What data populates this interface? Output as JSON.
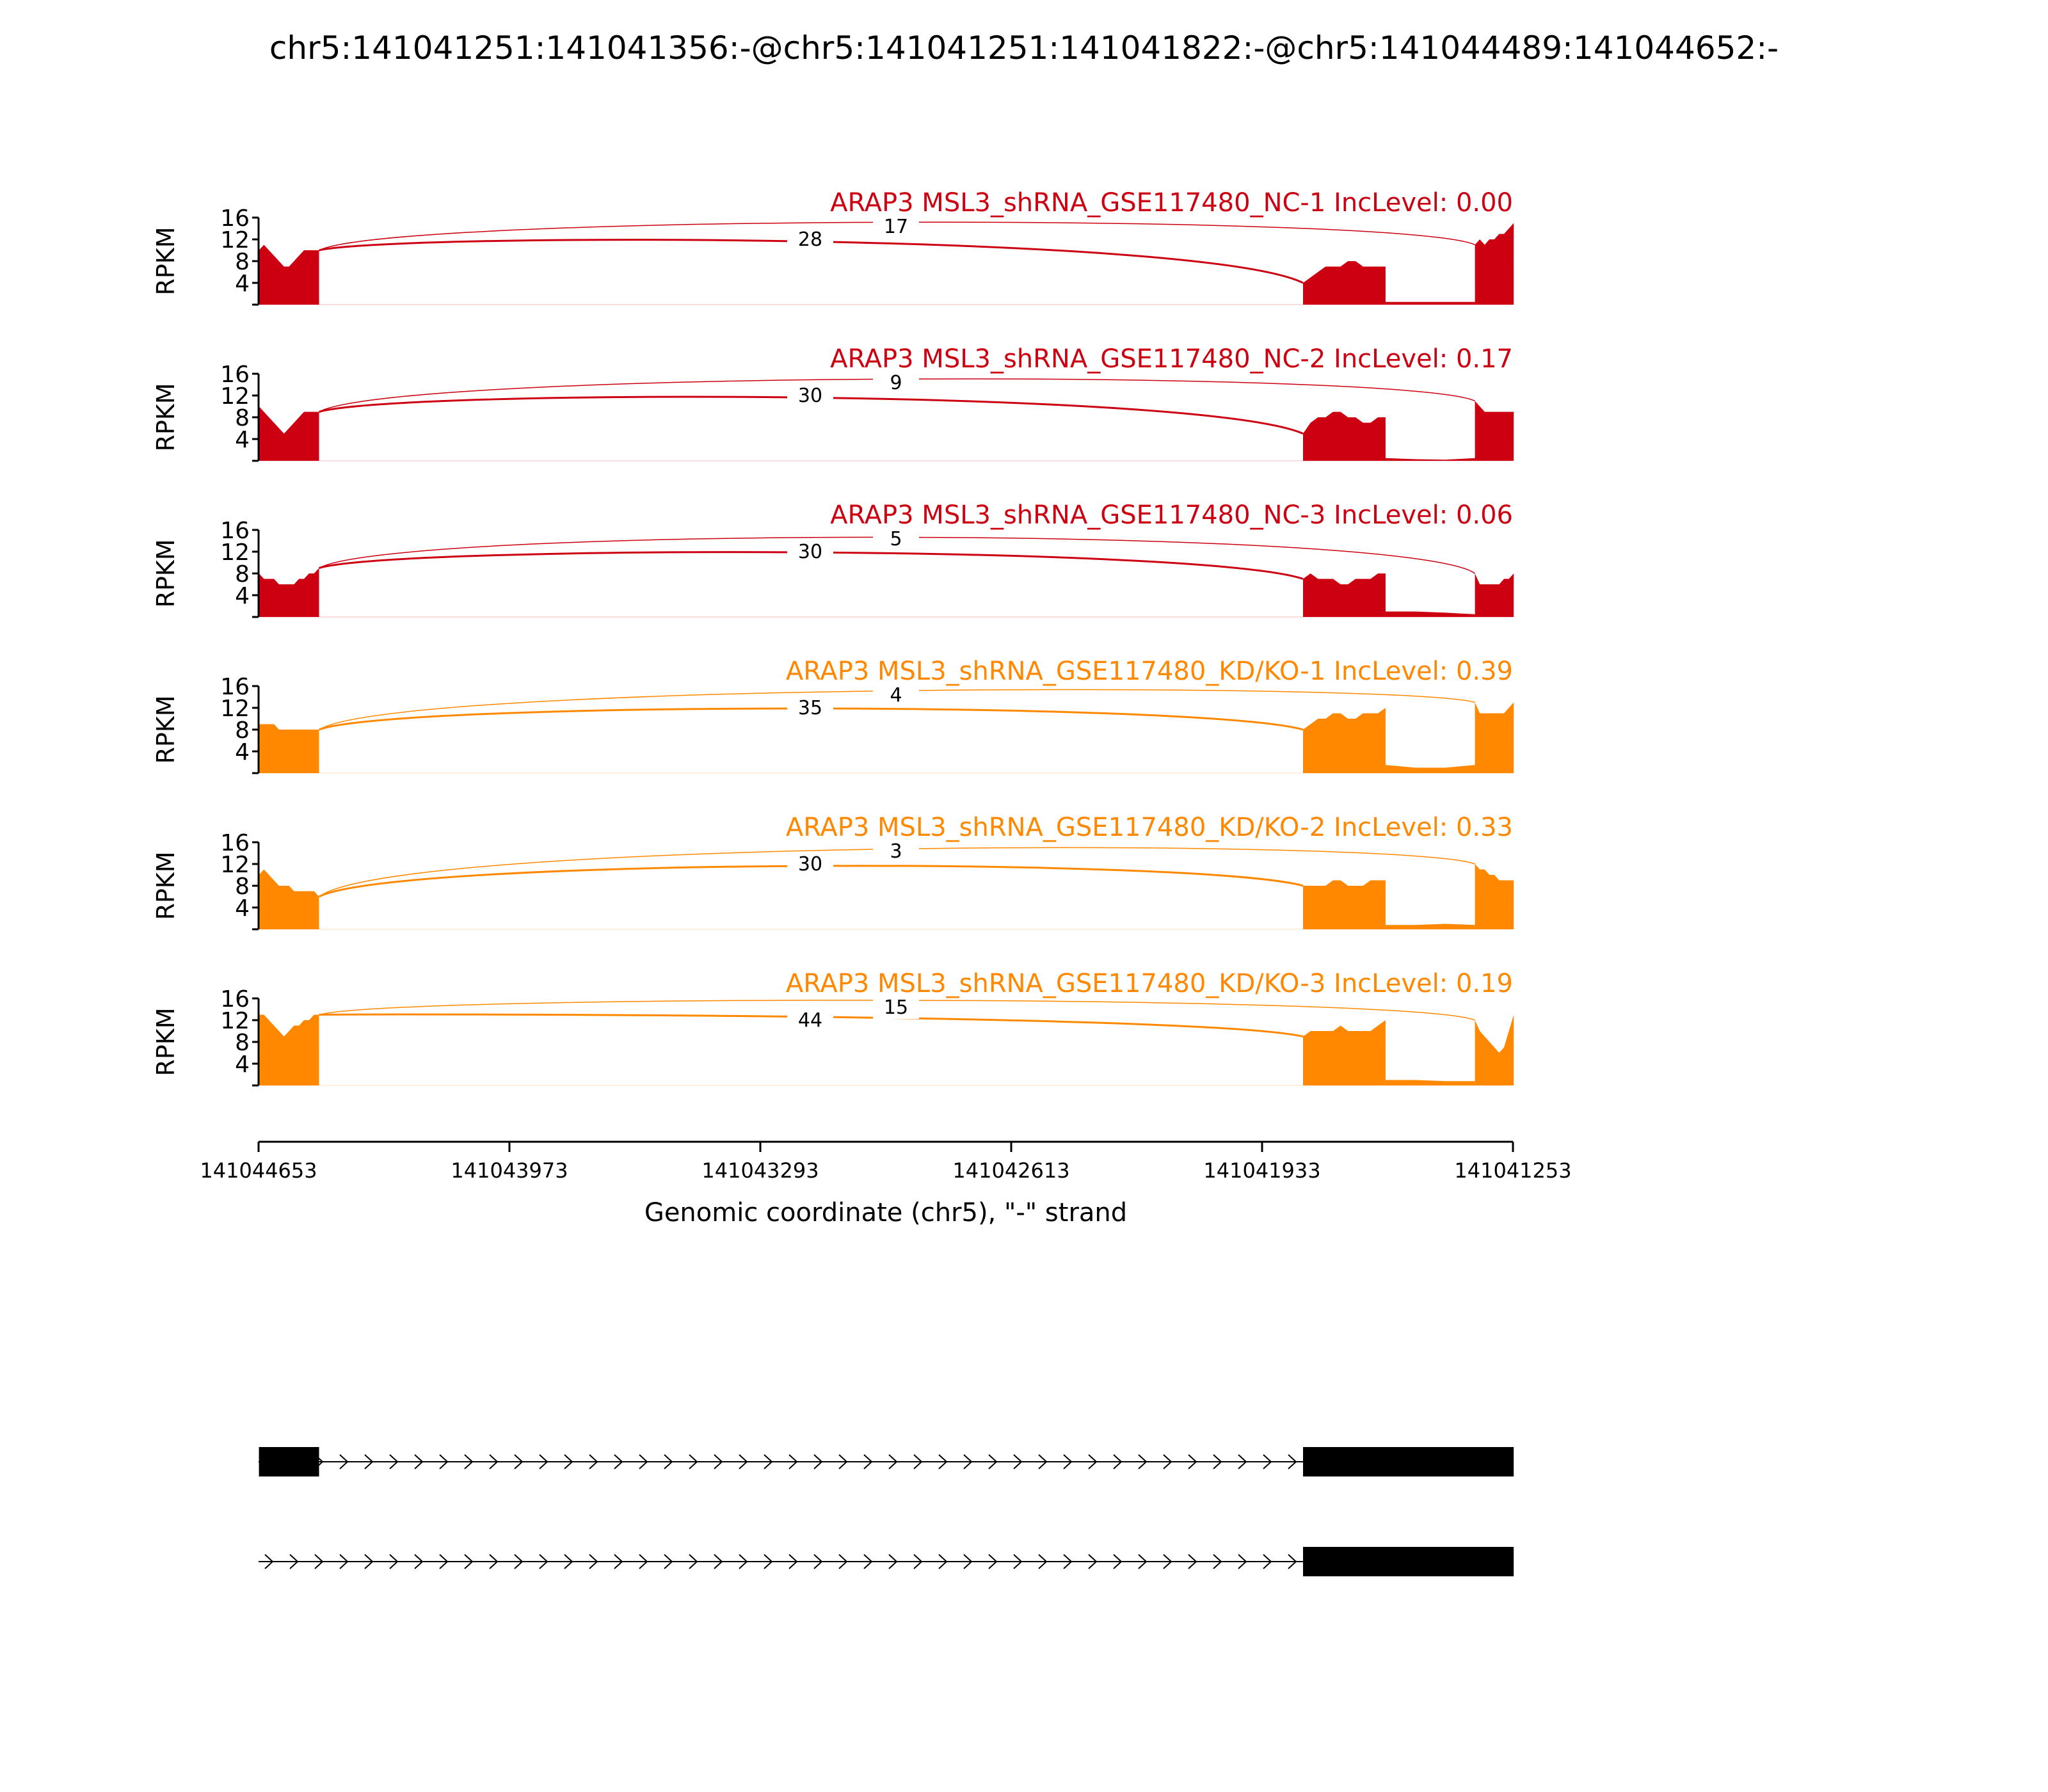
{
  "chart_data": {
    "type": "area",
    "title": "chr5:141041251:141041356:-@chr5:141041251:141041822:-@chr5:141044489:141044652:-",
    "xlabel": "Genomic coordinate (chr5), \"-\" strand",
    "ylabel": "RPKM",
    "x_range": [
      141044653,
      141041253
    ],
    "x_ticks": [
      "141044653",
      "141043973",
      "141043293",
      "141042613",
      "141041933",
      "141041253"
    ],
    "y_range": [
      0,
      16
    ],
    "y_ticks": [
      "4",
      "8",
      "12",
      "16"
    ],
    "exons": [
      {
        "start": 141044652,
        "end": 141044489
      },
      {
        "start": 141041822,
        "end": 141041356
      },
      {
        "start": 141041356,
        "end": 141041251
      }
    ],
    "tracks": [
      {
        "label": "ARAP3 MSL3_shRNA_GSE117480_NC-1 IncLevel: 0.00",
        "color": "#cc0011",
        "skip_count": "17",
        "inclusion_count": "28",
        "exon1_rpkm": [
          10,
          11,
          10,
          9,
          8,
          7,
          7,
          8,
          9,
          10,
          10,
          10,
          10
        ],
        "exon2_rpkm": [
          4,
          5,
          6,
          7,
          7,
          7,
          8,
          8,
          7,
          7,
          7,
          7
        ],
        "intron_rpkm": [
          0.5,
          0.5,
          0.5,
          0.5
        ],
        "exon3_rpkm": [
          11,
          12,
          11,
          12,
          12,
          13,
          13,
          14,
          15
        ]
      },
      {
        "label": "ARAP3 MSL3_shRNA_GSE117480_NC-2 IncLevel: 0.17",
        "color": "#cc0011",
        "skip_count": "9",
        "inclusion_count": "30",
        "exon1_rpkm": [
          10,
          9,
          8,
          7,
          6,
          5,
          6,
          7,
          8,
          9,
          9,
          9,
          9
        ],
        "exon2_rpkm": [
          5,
          7,
          8,
          8,
          9,
          9,
          8,
          8,
          7,
          7,
          8,
          8
        ],
        "intron_rpkm": [
          0.5,
          0.3,
          0.2,
          0.5
        ],
        "exon3_rpkm": [
          11,
          10,
          9,
          9,
          9,
          9,
          9,
          9,
          9
        ]
      },
      {
        "label": "ARAP3 MSL3_shRNA_GSE117480_NC-3 IncLevel: 0.06",
        "color": "#cc0011",
        "skip_count": "5",
        "inclusion_count": "30",
        "exon1_rpkm": [
          8,
          7,
          7,
          7,
          6,
          6,
          6,
          6,
          7,
          7,
          8,
          8,
          9
        ],
        "exon2_rpkm": [
          7,
          8,
          7,
          7,
          7,
          6,
          6,
          7,
          7,
          7,
          8,
          8
        ],
        "intron_rpkm": [
          1,
          1,
          0.8,
          0.5
        ],
        "exon3_rpkm": [
          8,
          6,
          6,
          6,
          6,
          6,
          7,
          7,
          8
        ]
      },
      {
        "label": "ARAP3 MSL3_shRNA_GSE117480_KD/KO-1 IncLevel: 0.39",
        "color": "#ff8800",
        "skip_count": "4",
        "inclusion_count": "35",
        "exon1_rpkm": [
          9,
          9,
          9,
          9,
          8,
          8,
          8,
          8,
          8,
          8,
          8,
          8,
          8
        ],
        "exon2_rpkm": [
          8,
          9,
          10,
          10,
          11,
          11,
          10,
          10,
          11,
          11,
          11,
          12
        ],
        "intron_rpkm": [
          1.5,
          1,
          1,
          1.5
        ],
        "exon3_rpkm": [
          13,
          11,
          11,
          11,
          11,
          11,
          11,
          12,
          13
        ]
      },
      {
        "label": "ARAP3 MSL3_shRNA_GSE117480_KD/KO-2 IncLevel: 0.33",
        "color": "#ff8800",
        "skip_count": "3",
        "inclusion_count": "30",
        "exon1_rpkm": [
          10,
          11,
          10,
          9,
          8,
          8,
          8,
          7,
          7,
          7,
          7,
          7,
          6
        ],
        "exon2_rpkm": [
          8,
          8,
          8,
          8,
          9,
          9,
          8,
          8,
          8,
          9,
          9,
          9
        ],
        "intron_rpkm": [
          0.8,
          0.8,
          1,
          0.8
        ],
        "exon3_rpkm": [
          12,
          11,
          11,
          10,
          10,
          9,
          9,
          9,
          9
        ]
      },
      {
        "label": "ARAP3 MSL3_shRNA_GSE117480_KD/KO-3 IncLevel: 0.19",
        "color": "#ff8800",
        "skip_count": "15",
        "inclusion_count": "44",
        "exon1_rpkm": [
          13,
          13,
          12,
          11,
          10,
          9,
          10,
          11,
          11,
          12,
          12,
          13,
          13
        ],
        "exon2_rpkm": [
          9,
          10,
          10,
          10,
          10,
          11,
          10,
          10,
          10,
          10,
          11,
          12
        ],
        "intron_rpkm": [
          1,
          1,
          0.8,
          0.8
        ],
        "exon3_rpkm": [
          12,
          10,
          9,
          8,
          7,
          6,
          7,
          10,
          13
        ]
      }
    ]
  }
}
